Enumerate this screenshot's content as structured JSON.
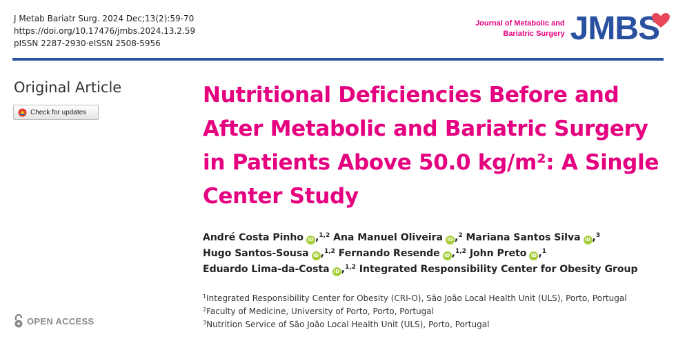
{
  "header": {
    "citation": "J Metab Bariatr Surg. 2024 Dec;13(2):59-70",
    "doi": "https://doi.org/10.17476/jmbs.2024.13.2.59",
    "issn": "pISSN 2287-2930·eISSN 2508-5956",
    "journal_name_line1": "Journal of Metabolic and",
    "journal_name_line2": "Bariatric Surgery",
    "logo_text": "JMBS"
  },
  "sidebar": {
    "article_type": "Original Article",
    "check_updates": "Check for updates",
    "open_access": "OPEN ACCESS"
  },
  "article": {
    "title": "Nutritional Deficiencies Before and After Metabolic and Bariatric Surgery in Patients Above 50.0 kg/m²: A Single Center Study",
    "authors": [
      {
        "name": "André Costa Pinho",
        "aff": "1,2",
        "orcid": true
      },
      {
        "name": "Ana Manuel Oliveira",
        "aff": "2",
        "orcid": true
      },
      {
        "name": "Mariana Santos Silva",
        "aff": "3",
        "orcid": true
      },
      {
        "name": "Hugo Santos-Sousa",
        "aff": "1,2",
        "orcid": true
      },
      {
        "name": "Fernando Resende",
        "aff": "1,2",
        "orcid": true
      },
      {
        "name": "John Preto",
        "aff": "1",
        "orcid": true
      },
      {
        "name": "Eduardo Lima-da-Costa",
        "aff": "1,2",
        "orcid": true
      },
      {
        "name": "Integrated Responsibility Center for Obesity Group",
        "aff": "",
        "orcid": false
      }
    ],
    "affiliations": [
      {
        "num": "1",
        "text": "Integrated Responsibility Center for Obesity (CRI-O), São João Local Health Unit (ULS), Porto, Portugal"
      },
      {
        "num": "2",
        "text": "Faculty of Medicine, University of Porto, Porto, Portugal"
      },
      {
        "num": "3",
        "text": "Nutrition Service of São João Local Health Unit (ULS), Porto, Portugal"
      }
    ]
  },
  "icons": {
    "orcid_icon_text": "iD",
    "orcid_color": "#a6ce39",
    "brand_pink": "#e4007f",
    "brand_blue": "#2a51a0"
  }
}
